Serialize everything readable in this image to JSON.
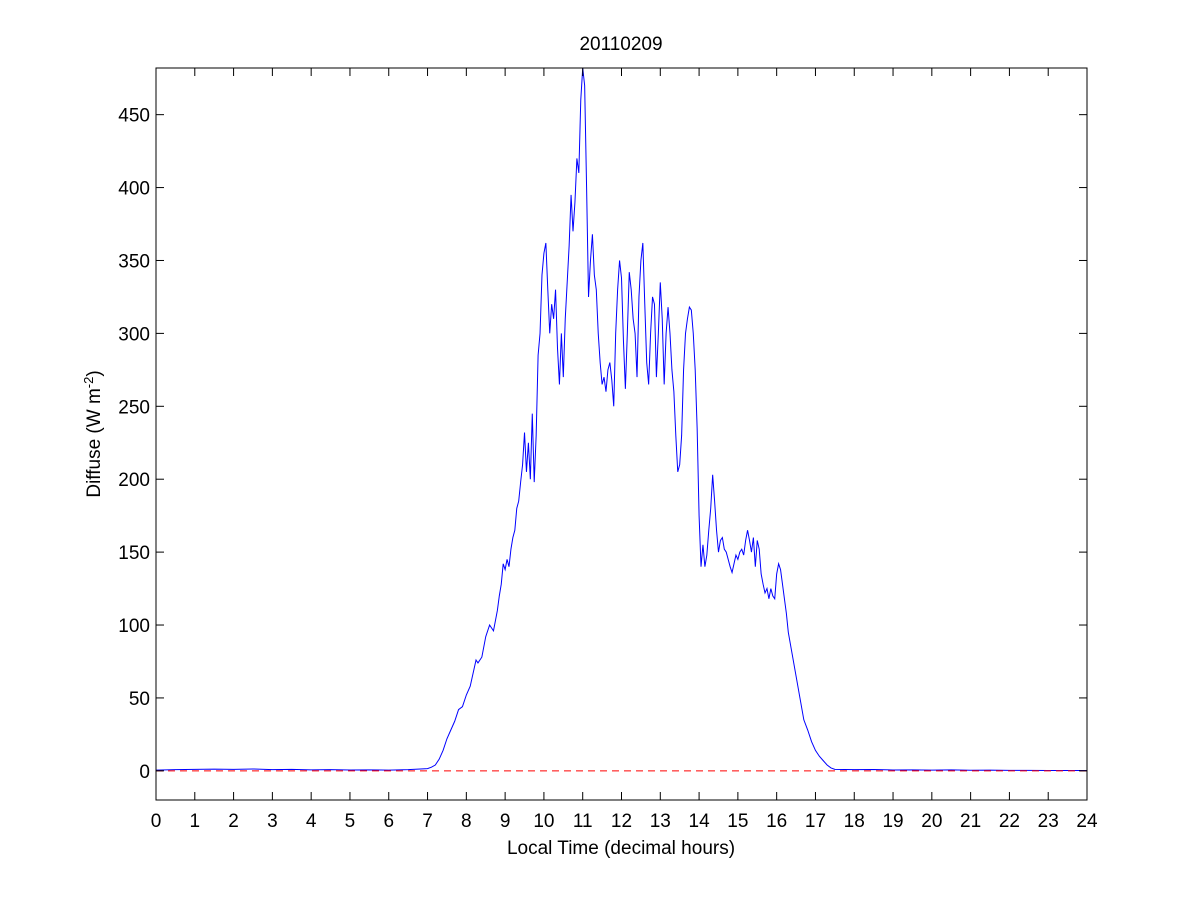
{
  "chart_data": {
    "type": "line",
    "title": "20110209",
    "xlabel": "Local Time (decimal hours)",
    "ylabel": {
      "main": "Diffuse (W m",
      "sup": "-2",
      "close": ")"
    },
    "xlim": [
      0,
      24
    ],
    "ylim": [
      -20,
      482
    ],
    "xticks": [
      0,
      1,
      2,
      3,
      4,
      5,
      6,
      7,
      8,
      9,
      10,
      11,
      12,
      13,
      14,
      15,
      16,
      17,
      18,
      19,
      20,
      21,
      22,
      23,
      24
    ],
    "yticks": [
      0,
      50,
      100,
      150,
      200,
      250,
      300,
      350,
      400,
      450
    ],
    "grid": false,
    "series": [
      {
        "style": "solid",
        "color": "#0000ff",
        "points": [
          [
            0,
            0.5
          ],
          [
            0.5,
            0.8
          ],
          [
            1,
            1
          ],
          [
            1.5,
            1.2
          ],
          [
            2,
            1
          ],
          [
            2.5,
            1.3
          ],
          [
            3,
            0.8
          ],
          [
            3.5,
            1
          ],
          [
            4,
            0.7
          ],
          [
            4.5,
            0.8
          ],
          [
            5,
            0.6
          ],
          [
            5.5,
            0.7
          ],
          [
            6,
            0.5
          ],
          [
            6.5,
            0.8
          ],
          [
            7,
            1.5
          ],
          [
            7.1,
            2.5
          ],
          [
            7.2,
            4
          ],
          [
            7.3,
            8
          ],
          [
            7.4,
            14
          ],
          [
            7.5,
            22
          ],
          [
            7.6,
            28
          ],
          [
            7.7,
            34
          ],
          [
            7.8,
            42
          ],
          [
            7.9,
            44
          ],
          [
            8,
            52
          ],
          [
            8.1,
            58
          ],
          [
            8.2,
            70
          ],
          [
            8.25,
            76
          ],
          [
            8.3,
            74
          ],
          [
            8.4,
            78
          ],
          [
            8.5,
            92
          ],
          [
            8.6,
            100
          ],
          [
            8.7,
            96
          ],
          [
            8.8,
            110
          ],
          [
            8.85,
            120
          ],
          [
            8.9,
            128
          ],
          [
            8.95,
            142
          ],
          [
            9,
            138
          ],
          [
            9.05,
            145
          ],
          [
            9.1,
            140
          ],
          [
            9.15,
            152
          ],
          [
            9.2,
            160
          ],
          [
            9.25,
            165
          ],
          [
            9.3,
            180
          ],
          [
            9.35,
            185
          ],
          [
            9.4,
            198
          ],
          [
            9.45,
            210
          ],
          [
            9.5,
            232
          ],
          [
            9.55,
            205
          ],
          [
            9.6,
            225
          ],
          [
            9.65,
            200
          ],
          [
            9.7,
            245
          ],
          [
            9.75,
            198
          ],
          [
            9.8,
            230
          ],
          [
            9.85,
            285
          ],
          [
            9.9,
            300
          ],
          [
            9.95,
            340
          ],
          [
            10,
            355
          ],
          [
            10.05,
            362
          ],
          [
            10.1,
            330
          ],
          [
            10.15,
            300
          ],
          [
            10.2,
            320
          ],
          [
            10.25,
            310
          ],
          [
            10.3,
            330
          ],
          [
            10.35,
            290
          ],
          [
            10.4,
            265
          ],
          [
            10.45,
            300
          ],
          [
            10.5,
            270
          ],
          [
            10.55,
            310
          ],
          [
            10.6,
            335
          ],
          [
            10.65,
            360
          ],
          [
            10.7,
            395
          ],
          [
            10.75,
            370
          ],
          [
            10.8,
            390
          ],
          [
            10.85,
            420
          ],
          [
            10.9,
            410
          ],
          [
            10.95,
            460
          ],
          [
            11,
            482
          ],
          [
            11.05,
            470
          ],
          [
            11.1,
            400
          ],
          [
            11.15,
            325
          ],
          [
            11.2,
            350
          ],
          [
            11.25,
            368
          ],
          [
            11.3,
            340
          ],
          [
            11.35,
            330
          ],
          [
            11.4,
            300
          ],
          [
            11.45,
            280
          ],
          [
            11.5,
            265
          ],
          [
            11.55,
            270
          ],
          [
            11.6,
            260
          ],
          [
            11.65,
            275
          ],
          [
            11.7,
            280
          ],
          [
            11.75,
            268
          ],
          [
            11.8,
            250
          ],
          [
            11.85,
            300
          ],
          [
            11.9,
            330
          ],
          [
            11.95,
            350
          ],
          [
            12,
            338
          ],
          [
            12.05,
            295
          ],
          [
            12.1,
            262
          ],
          [
            12.15,
            300
          ],
          [
            12.2,
            342
          ],
          [
            12.25,
            330
          ],
          [
            12.3,
            310
          ],
          [
            12.35,
            300
          ],
          [
            12.4,
            270
          ],
          [
            12.45,
            325
          ],
          [
            12.5,
            350
          ],
          [
            12.55,
            362
          ],
          [
            12.6,
            320
          ],
          [
            12.65,
            280
          ],
          [
            12.7,
            265
          ],
          [
            12.75,
            300
          ],
          [
            12.8,
            325
          ],
          [
            12.85,
            320
          ],
          [
            12.9,
            270
          ],
          [
            12.95,
            300
          ],
          [
            13,
            335
          ],
          [
            13.05,
            310
          ],
          [
            13.1,
            265
          ],
          [
            13.15,
            300
          ],
          [
            13.2,
            318
          ],
          [
            13.25,
            300
          ],
          [
            13.3,
            275
          ],
          [
            13.35,
            260
          ],
          [
            13.4,
            230
          ],
          [
            13.45,
            205
          ],
          [
            13.5,
            210
          ],
          [
            13.55,
            230
          ],
          [
            13.6,
            275
          ],
          [
            13.65,
            300
          ],
          [
            13.7,
            310
          ],
          [
            13.75,
            318
          ],
          [
            13.8,
            316
          ],
          [
            13.85,
            300
          ],
          [
            13.9,
            275
          ],
          [
            13.95,
            235
          ],
          [
            14,
            175
          ],
          [
            14.05,
            140
          ],
          [
            14.1,
            155
          ],
          [
            14.15,
            140
          ],
          [
            14.2,
            148
          ],
          [
            14.25,
            165
          ],
          [
            14.3,
            180
          ],
          [
            14.35,
            203
          ],
          [
            14.4,
            185
          ],
          [
            14.45,
            165
          ],
          [
            14.5,
            150
          ],
          [
            14.55,
            158
          ],
          [
            14.6,
            160
          ],
          [
            14.65,
            152
          ],
          [
            14.7,
            150
          ],
          [
            14.75,
            145
          ],
          [
            14.8,
            140
          ],
          [
            14.85,
            136
          ],
          [
            14.9,
            142
          ],
          [
            14.95,
            148
          ],
          [
            15,
            145
          ],
          [
            15.05,
            150
          ],
          [
            15.1,
            152
          ],
          [
            15.15,
            148
          ],
          [
            15.2,
            158
          ],
          [
            15.25,
            165
          ],
          [
            15.3,
            158
          ],
          [
            15.35,
            150
          ],
          [
            15.4,
            160
          ],
          [
            15.45,
            140
          ],
          [
            15.5,
            158
          ],
          [
            15.55,
            152
          ],
          [
            15.6,
            135
          ],
          [
            15.65,
            128
          ],
          [
            15.7,
            122
          ],
          [
            15.75,
            125
          ],
          [
            15.8,
            118
          ],
          [
            15.85,
            125
          ],
          [
            15.9,
            120
          ],
          [
            15.95,
            118
          ],
          [
            16,
            135
          ],
          [
            16.05,
            142
          ],
          [
            16.1,
            138
          ],
          [
            16.15,
            128
          ],
          [
            16.2,
            118
          ],
          [
            16.25,
            108
          ],
          [
            16.3,
            95
          ],
          [
            16.4,
            80
          ],
          [
            16.5,
            65
          ],
          [
            16.6,
            50
          ],
          [
            16.7,
            35
          ],
          [
            16.8,
            28
          ],
          [
            16.9,
            20
          ],
          [
            17,
            14
          ],
          [
            17.1,
            10
          ],
          [
            17.2,
            7
          ],
          [
            17.3,
            4
          ],
          [
            17.4,
            2
          ],
          [
            17.5,
            1
          ],
          [
            18,
            0.8
          ],
          [
            18.5,
            0.9
          ],
          [
            19,
            0.6
          ],
          [
            19.5,
            0.7
          ],
          [
            20,
            0.5
          ],
          [
            20.5,
            0.7
          ],
          [
            21,
            0.4
          ],
          [
            21.5,
            0.5
          ],
          [
            22,
            0.3
          ],
          [
            22.5,
            0.3
          ],
          [
            23,
            0.2
          ],
          [
            23.5,
            0.2
          ],
          [
            24,
            0.2
          ]
        ]
      },
      {
        "style": "dashed",
        "color": "#ff0000",
        "points": [
          [
            0,
            0
          ],
          [
            24,
            0
          ]
        ]
      }
    ]
  }
}
